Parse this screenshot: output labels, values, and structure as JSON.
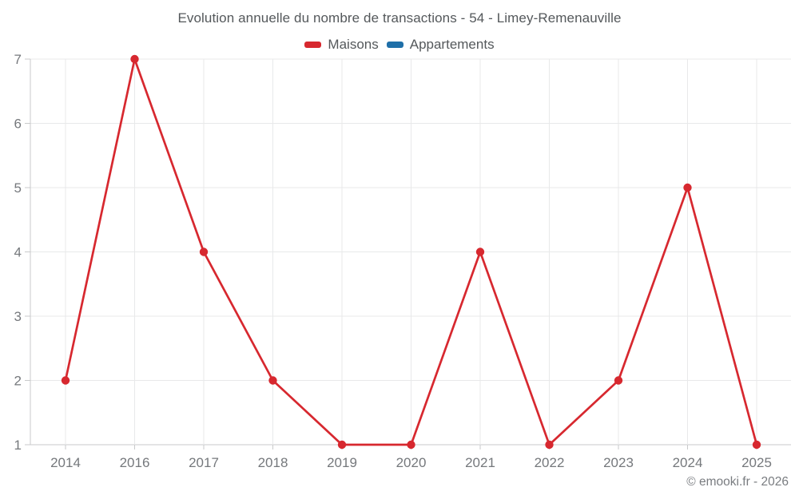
{
  "title": "Evolution annuelle du nombre de transactions - 54 - Limey-Remenauville",
  "legend": {
    "items": [
      {
        "label": "Maisons",
        "color": "#d7282f"
      },
      {
        "label": "Appartements",
        "color": "#1f6fa8"
      }
    ]
  },
  "footer": "© emooki.fr - 2026",
  "colors": {
    "maisons": "#d7282f",
    "appartements": "#1f6fa8",
    "axis_labels": "#75787c",
    "gridlines": "#e8e9ea",
    "axis_lines": "#c9cacb"
  },
  "chart_data": {
    "type": "line",
    "title": "Evolution annuelle du nombre de transactions - 54 - Limey-Remenauville",
    "categories": [
      "2014",
      "2016",
      "2017",
      "2018",
      "2019",
      "2020",
      "2021",
      "2022",
      "2023",
      "2024",
      "2025"
    ],
    "series": [
      {
        "name": "Maisons",
        "color": "#d7282f",
        "values": [
          2,
          7,
          4,
          2,
          1,
          1,
          4,
          1,
          2,
          5,
          1
        ]
      },
      {
        "name": "Appartements",
        "color": "#1f6fa8",
        "values": []
      }
    ],
    "xlabel": "",
    "ylabel": "",
    "ylim": [
      1,
      7
    ],
    "yticks": [
      1,
      2,
      3,
      4,
      5,
      6,
      7
    ],
    "grid": true,
    "legend_position": "top",
    "markers": true
  }
}
